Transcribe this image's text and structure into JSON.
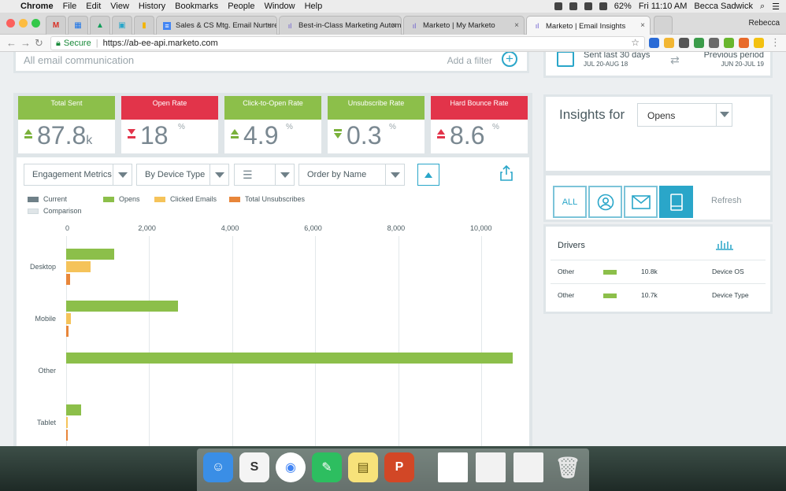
{
  "menubar": {
    "apple": "",
    "app": "Chrome",
    "items": [
      "File",
      "Edit",
      "View",
      "History",
      "Bookmarks",
      "People",
      "Window",
      "Help"
    ],
    "battery": "62%",
    "clock": "Fri 11:10 AM",
    "user": "Becca Sadwick"
  },
  "tabs": [
    {
      "label": "Sales & CS Mtg. Email Nurture",
      "close": "×"
    },
    {
      "label": "Best-in-Class Marketing Autom",
      "close": "×"
    },
    {
      "label": "Marketo | My Marketo",
      "close": "×"
    },
    {
      "label": "Marketo | Email Insights",
      "close": "×"
    }
  ],
  "tab_user": "Rebecca",
  "address": {
    "secure_label": "Secure",
    "url": "https://ab-ee-api.marketo.com"
  },
  "filter": {
    "placeholder": "All email communication",
    "add_label": "Add a filter"
  },
  "period": {
    "current_label": "Sent last 30 days",
    "current_range": "JUL 20-AUG 18",
    "previous_label": "Previous period",
    "previous_range": "JUN 20-JUL 19"
  },
  "kpis": [
    {
      "title": "Total Sent",
      "value": "87.8",
      "unit": "k",
      "suffix": "",
      "color": "#8cbf4a",
      "trend": "up"
    },
    {
      "title": "Open Rate",
      "value": "18",
      "unit": "",
      "suffix": "%",
      "color": "#e2344a",
      "trend": "down"
    },
    {
      "title": "Click-to-Open Rate",
      "value": "4.9",
      "unit": "",
      "suffix": "%",
      "color": "#8cbf4a",
      "trend": "up"
    },
    {
      "title": "Unsubscribe Rate",
      "value": "0.3",
      "unit": "",
      "suffix": "%",
      "color": "#8cbf4a",
      "trend": "down"
    },
    {
      "title": "Hard Bounce Rate",
      "value": "8.6",
      "unit": "",
      "suffix": "%",
      "color": "#e2344a",
      "trend": "up"
    }
  ],
  "toolbar": {
    "metric_select": "Engagement Metrics",
    "group_select": "By Device Type",
    "order_select": "Order by Name"
  },
  "legend": {
    "current": "Current",
    "comparison": "Comparison",
    "opens": "Opens",
    "clicked": "Clicked Emails",
    "unsubs": "Total Unsubscribes"
  },
  "chart_data": {
    "type": "bar",
    "orientation": "horizontal",
    "categories": [
      "Desktop",
      "Mobile",
      "Other",
      "Tablet"
    ],
    "x_ticks": [
      "0",
      "2,000",
      "4,000",
      "6,000",
      "8,000",
      "10,000"
    ],
    "xlim": [
      0,
      10800
    ],
    "grid": true,
    "legend_position": "top-left",
    "series": [
      {
        "name": "Opens",
        "color": "#8cbf4a",
        "values": [
          1150,
          2700,
          10750,
          370
        ]
      },
      {
        "name": "Clicked Emails",
        "color": "#f5c35a",
        "values": [
          580,
          120,
          0,
          20
        ]
      },
      {
        "name": "Total Unsubscribes",
        "color": "#e8863a",
        "values": [
          100,
          50,
          0,
          5
        ]
      }
    ]
  },
  "insights": {
    "title": "Insights for",
    "select": "Opens"
  },
  "filters": {
    "all": "ALL",
    "refresh": "Refresh"
  },
  "drivers": {
    "title": "Drivers",
    "rows": [
      {
        "name": "Other",
        "value": "10.8k",
        "dimension": "Device OS"
      },
      {
        "name": "Other",
        "value": "10.7k",
        "dimension": "Device Type"
      }
    ]
  }
}
